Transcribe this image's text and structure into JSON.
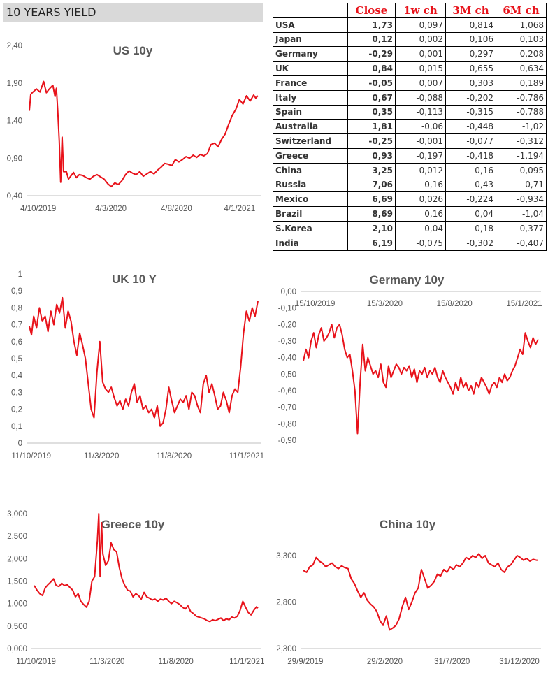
{
  "header": {
    "title": "10 YEARS YIELD"
  },
  "table": {
    "columns": [
      "",
      "Close",
      "1w ch",
      "3M ch",
      "6M ch"
    ],
    "rows": [
      [
        "USA",
        "1,73",
        "0,097",
        "0,814",
        "1,068"
      ],
      [
        "Japan",
        "0,12",
        "0,002",
        "0,106",
        "0,103"
      ],
      [
        "Germany",
        "-0,29",
        "0,001",
        "0,297",
        "0,208"
      ],
      [
        "UK",
        "0,84",
        "0,015",
        "0,655",
        "0,634"
      ],
      [
        "France",
        "-0,05",
        "0,007",
        "0,303",
        "0,189"
      ],
      [
        "Italy",
        "0,67",
        "-0,088",
        "-0,202",
        "-0,786"
      ],
      [
        "Spain",
        "0,35",
        "-0,113",
        "-0,315",
        "-0,788"
      ],
      [
        "Australia",
        "1,81",
        "-0,06",
        "-0,448",
        "-1,02"
      ],
      [
        "Switzerland",
        "-0,25",
        "-0,001",
        "-0,077",
        "-0,312"
      ],
      [
        "Greece",
        "0,93",
        "-0,197",
        "-0,418",
        "-1,194"
      ],
      [
        "China",
        "3,25",
        "0,012",
        "0,16",
        "-0,095"
      ],
      [
        "Russia",
        "7,06",
        "-0,16",
        "-0,43",
        "-0,71"
      ],
      [
        "Mexico",
        "6,69",
        "0,026",
        "-0,224",
        "-0,934"
      ],
      [
        "Brazil",
        "8,69",
        "0,16",
        "0,04",
        "-1,04"
      ],
      [
        "S.Korea",
        "2,10",
        "-0,04",
        "-0,18",
        "-0,377"
      ],
      [
        "India",
        "6,19",
        "-0,075",
        "-0,302",
        "-0,407"
      ]
    ]
  },
  "colors": {
    "line": "#e8121a",
    "header_text": "#e8121a",
    "banner_bg": "#d9d9d9"
  },
  "chart_data": [
    {
      "id": "us",
      "type": "line",
      "title": "US 10y",
      "ylim": [
        0.4,
        2.4
      ],
      "y_ticks": [
        "0,40",
        "0,90",
        "1,40",
        "1,90",
        "2,40"
      ],
      "y_tick_values": [
        0.4,
        0.9,
        1.4,
        1.9,
        2.4
      ],
      "x_ticks": [
        "4/10/2019",
        "4/3/2020",
        "4/8/2020",
        "4/1/2021"
      ],
      "series": [
        {
          "x": [
            0,
            2,
            5,
            10,
            15,
            20,
            24,
            28,
            33,
            36,
            38,
            40,
            42,
            44,
            46,
            48,
            52,
            55,
            58,
            62,
            66,
            70,
            75,
            80,
            85,
            90,
            95,
            100,
            105,
            110,
            115,
            120,
            125,
            130,
            135,
            140,
            145,
            150,
            155,
            160,
            165,
            170,
            175,
            180,
            185,
            190,
            195,
            200,
            205,
            210,
            215,
            220,
            225,
            230,
            235,
            240,
            245,
            250,
            255,
            260,
            265,
            270,
            275,
            280,
            285,
            290,
            295,
            300,
            305,
            310,
            315,
            318,
            321
          ],
          "y": [
            1.53,
            1.75,
            1.78,
            1.82,
            1.78,
            1.92,
            1.77,
            1.82,
            1.87,
            1.72,
            1.83,
            1.52,
            1.12,
            0.58,
            1.18,
            0.72,
            0.72,
            0.62,
            0.66,
            0.71,
            0.64,
            0.68,
            0.67,
            0.64,
            0.62,
            0.66,
            0.68,
            0.65,
            0.62,
            0.56,
            0.52,
            0.57,
            0.55,
            0.6,
            0.68,
            0.73,
            0.7,
            0.68,
            0.72,
            0.66,
            0.69,
            0.72,
            0.69,
            0.74,
            0.78,
            0.83,
            0.82,
            0.8,
            0.88,
            0.85,
            0.88,
            0.92,
            0.9,
            0.94,
            0.91,
            0.95,
            0.93,
            0.96,
            1.08,
            1.1,
            1.05,
            1.15,
            1.22,
            1.35,
            1.47,
            1.55,
            1.68,
            1.62,
            1.73,
            1.66,
            1.74,
            1.7,
            1.73
          ]
        }
      ]
    },
    {
      "id": "uk",
      "type": "line",
      "title": "UK 10 Y",
      "ylim": [
        0,
        1
      ],
      "y_ticks": [
        "0",
        "0,1",
        "0,2",
        "0,3",
        "0,4",
        "0,5",
        "0,6",
        "0,7",
        "0,8",
        "0,9",
        "1"
      ],
      "y_tick_values": [
        0,
        0.1,
        0.2,
        0.3,
        0.4,
        0.5,
        0.6,
        0.7,
        0.8,
        0.9,
        1.0
      ],
      "x_ticks": [
        "11/10/2019",
        "11/3/2020",
        "11/8/2020",
        "11/1/2021"
      ],
      "series": [
        {
          "x": [
            0,
            3,
            6,
            10,
            14,
            18,
            22,
            26,
            30,
            34,
            38,
            42,
            46,
            50,
            54,
            58,
            62,
            66,
            70,
            74,
            78,
            82,
            86,
            90,
            94,
            98,
            102,
            106,
            110,
            114,
            118,
            122,
            126,
            130,
            134,
            138,
            142,
            146,
            150,
            154,
            158,
            162,
            166,
            170,
            174,
            178,
            182,
            186,
            190,
            194,
            198,
            202,
            206,
            210,
            214,
            218,
            222,
            226,
            230,
            234,
            238,
            242,
            246,
            250,
            254,
            258,
            262,
            266,
            270,
            274,
            278,
            282,
            286,
            290,
            294,
            298,
            302,
            306,
            310,
            314,
            318
          ],
          "y": [
            0.69,
            0.64,
            0.75,
            0.68,
            0.8,
            0.72,
            0.75,
            0.66,
            0.78,
            0.7,
            0.82,
            0.77,
            0.86,
            0.68,
            0.78,
            0.72,
            0.6,
            0.52,
            0.65,
            0.58,
            0.5,
            0.35,
            0.2,
            0.15,
            0.42,
            0.6,
            0.36,
            0.32,
            0.3,
            0.33,
            0.27,
            0.22,
            0.25,
            0.2,
            0.26,
            0.22,
            0.3,
            0.35,
            0.24,
            0.28,
            0.2,
            0.22,
            0.18,
            0.2,
            0.15,
            0.22,
            0.1,
            0.12,
            0.2,
            0.33,
            0.25,
            0.18,
            0.22,
            0.26,
            0.24,
            0.28,
            0.2,
            0.3,
            0.28,
            0.22,
            0.18,
            0.35,
            0.4,
            0.3,
            0.35,
            0.28,
            0.2,
            0.22,
            0.3,
            0.25,
            0.18,
            0.28,
            0.32,
            0.3,
            0.45,
            0.65,
            0.78,
            0.72,
            0.8,
            0.75,
            0.84
          ]
        }
      ]
    },
    {
      "id": "germany",
      "type": "line",
      "title": "Germany 10y",
      "ylim": [
        -0.9,
        0.0
      ],
      "y_ticks": [
        "-0,90",
        "-0,80",
        "-0,70",
        "-0,60",
        "-0,50",
        "-0,40",
        "-0,30",
        "-0,20",
        "-0,10",
        "0,00"
      ],
      "y_tick_values": [
        -0.9,
        -0.8,
        -0.7,
        -0.6,
        -0.5,
        -0.4,
        -0.3,
        -0.2,
        -0.1,
        0.0
      ],
      "x_ticks": [
        "15/10/2019",
        "15/3/2020",
        "15/8/2020",
        "15/1/2021"
      ],
      "series": [
        {
          "x": [
            0,
            4,
            8,
            12,
            16,
            20,
            24,
            28,
            32,
            36,
            40,
            44,
            48,
            52,
            56,
            60,
            64,
            68,
            72,
            76,
            80,
            84,
            88,
            92,
            96,
            100,
            104,
            108,
            112,
            116,
            120,
            124,
            128,
            132,
            136,
            140,
            144,
            148,
            152,
            156,
            160,
            164,
            168,
            172,
            176,
            180,
            184,
            188,
            192,
            196,
            200,
            204,
            208,
            212,
            216,
            220,
            224,
            228,
            232,
            236,
            240,
            244,
            248,
            252,
            256,
            260,
            264,
            268,
            272,
            276,
            280,
            284,
            288,
            292,
            296,
            300,
            304,
            308,
            312,
            316,
            320,
            324,
            328,
            332,
            336,
            340,
            344,
            348,
            352,
            356,
            360,
            364
          ],
          "y": [
            -0.42,
            -0.35,
            -0.4,
            -0.3,
            -0.25,
            -0.34,
            -0.26,
            -0.22,
            -0.3,
            -0.28,
            -0.25,
            -0.2,
            -0.28,
            -0.22,
            -0.2,
            -0.26,
            -0.35,
            -0.4,
            -0.38,
            -0.48,
            -0.6,
            -0.86,
            -0.55,
            -0.32,
            -0.48,
            -0.4,
            -0.45,
            -0.5,
            -0.48,
            -0.52,
            -0.44,
            -0.55,
            -0.58,
            -0.45,
            -0.52,
            -0.48,
            -0.44,
            -0.46,
            -0.5,
            -0.46,
            -0.48,
            -0.45,
            -0.52,
            -0.47,
            -0.55,
            -0.48,
            -0.5,
            -0.46,
            -0.52,
            -0.48,
            -0.5,
            -0.46,
            -0.52,
            -0.55,
            -0.48,
            -0.52,
            -0.55,
            -0.58,
            -0.62,
            -0.55,
            -0.6,
            -0.52,
            -0.58,
            -0.55,
            -0.6,
            -0.57,
            -0.62,
            -0.55,
            -0.58,
            -0.52,
            -0.55,
            -0.58,
            -0.62,
            -0.57,
            -0.55,
            -0.58,
            -0.52,
            -0.55,
            -0.5,
            -0.54,
            -0.52,
            -0.48,
            -0.45,
            -0.4,
            -0.35,
            -0.38,
            -0.25,
            -0.3,
            -0.34,
            -0.28,
            -0.32,
            -0.29
          ]
        }
      ]
    },
    {
      "id": "greece",
      "type": "line",
      "title": "Greece 10y",
      "ylim": [
        0,
        3
      ],
      "y_ticks": [
        "0,000",
        "0,500",
        "1,000",
        "1,500",
        "2,000",
        "2,500",
        "3,000"
      ],
      "y_tick_values": [
        0,
        0.5,
        1.0,
        1.5,
        2.0,
        2.5,
        3.0
      ],
      "x_ticks": [
        "11/10/2019",
        "11/3/2020",
        "11/8/2020",
        "11/1/2021"
      ],
      "series": [
        {
          "x": [
            0,
            4,
            8,
            12,
            16,
            20,
            24,
            28,
            32,
            36,
            40,
            44,
            48,
            52,
            56,
            60,
            64,
            68,
            72,
            76,
            80,
            84,
            88,
            92,
            94,
            96,
            98,
            100,
            104,
            108,
            112,
            116,
            120,
            124,
            128,
            132,
            136,
            140,
            144,
            148,
            152,
            156,
            160,
            164,
            168,
            172,
            176,
            180,
            184,
            188,
            192,
            196,
            200,
            204,
            208,
            212,
            216,
            220,
            224,
            228,
            232,
            236,
            240,
            244,
            248,
            252,
            256,
            260,
            264,
            268,
            272,
            276,
            280,
            284,
            288,
            292,
            296,
            300,
            304,
            308,
            312,
            316,
            320,
            324,
            326
          ],
          "y": [
            1.4,
            1.3,
            1.22,
            1.18,
            1.35,
            1.42,
            1.48,
            1.55,
            1.4,
            1.38,
            1.45,
            1.4,
            1.42,
            1.36,
            1.3,
            1.15,
            1.22,
            1.05,
            0.98,
            0.92,
            1.05,
            1.5,
            1.6,
            2.4,
            3.0,
            1.6,
            2.8,
            2.1,
            1.85,
            1.95,
            2.35,
            2.2,
            2.15,
            1.8,
            1.55,
            1.4,
            1.3,
            1.28,
            1.15,
            1.22,
            1.18,
            1.1,
            1.25,
            1.15,
            1.12,
            1.08,
            1.1,
            1.05,
            1.1,
            1.08,
            1.12,
            1.05,
            1.0,
            1.05,
            1.02,
            0.98,
            0.92,
            0.88,
            0.95,
            0.82,
            0.78,
            0.72,
            0.7,
            0.68,
            0.66,
            0.62,
            0.6,
            0.64,
            0.62,
            0.65,
            0.68,
            0.62,
            0.66,
            0.64,
            0.7,
            0.68,
            0.72,
            0.85,
            1.05,
            0.92,
            0.8,
            0.75,
            0.85,
            0.93,
            0.9
          ]
        }
      ]
    },
    {
      "id": "china",
      "type": "line",
      "title": "China 10y",
      "ylim": [
        2.3,
        3.3
      ],
      "y_ticks": [
        "2,300",
        "2,800",
        "3,300"
      ],
      "y_tick_values": [
        2.3,
        2.8,
        3.3
      ],
      "x_ticks": [
        "29/9/2019",
        "29/2/2020",
        "31/7/2020",
        "31/12/2020"
      ],
      "series": [
        {
          "x": [
            0,
            5,
            10,
            15,
            20,
            25,
            30,
            35,
            40,
            45,
            50,
            55,
            60,
            65,
            70,
            75,
            80,
            85,
            90,
            95,
            100,
            105,
            110,
            115,
            120,
            125,
            130,
            135,
            140,
            145,
            150,
            155,
            160,
            165,
            170,
            175,
            180,
            185,
            190,
            195,
            200,
            205,
            210,
            215,
            220,
            225,
            230,
            235,
            240,
            245,
            250,
            255,
            260,
            265,
            270,
            275,
            280,
            285,
            290,
            295,
            300,
            305,
            310,
            315,
            320,
            325,
            330,
            335,
            340,
            345,
            350,
            355,
            360,
            365,
            368
          ],
          "y": [
            3.14,
            3.12,
            3.18,
            3.2,
            3.28,
            3.24,
            3.22,
            3.18,
            3.2,
            3.22,
            3.18,
            3.16,
            3.19,
            3.17,
            3.16,
            3.05,
            3.0,
            2.92,
            2.85,
            2.9,
            2.82,
            2.78,
            2.75,
            2.7,
            2.6,
            2.55,
            2.65,
            2.5,
            2.52,
            2.55,
            2.62,
            2.75,
            2.85,
            2.72,
            2.8,
            2.9,
            2.95,
            3.15,
            3.05,
            2.95,
            2.98,
            3.02,
            3.1,
            3.08,
            3.15,
            3.12,
            3.18,
            3.15,
            3.2,
            3.18,
            3.22,
            3.28,
            3.26,
            3.3,
            3.28,
            3.32,
            3.27,
            3.3,
            3.22,
            3.2,
            3.18,
            3.22,
            3.15,
            3.12,
            3.18,
            3.2,
            3.25,
            3.3,
            3.28,
            3.25,
            3.27,
            3.24,
            3.26,
            3.25,
            3.25
          ]
        }
      ]
    }
  ]
}
